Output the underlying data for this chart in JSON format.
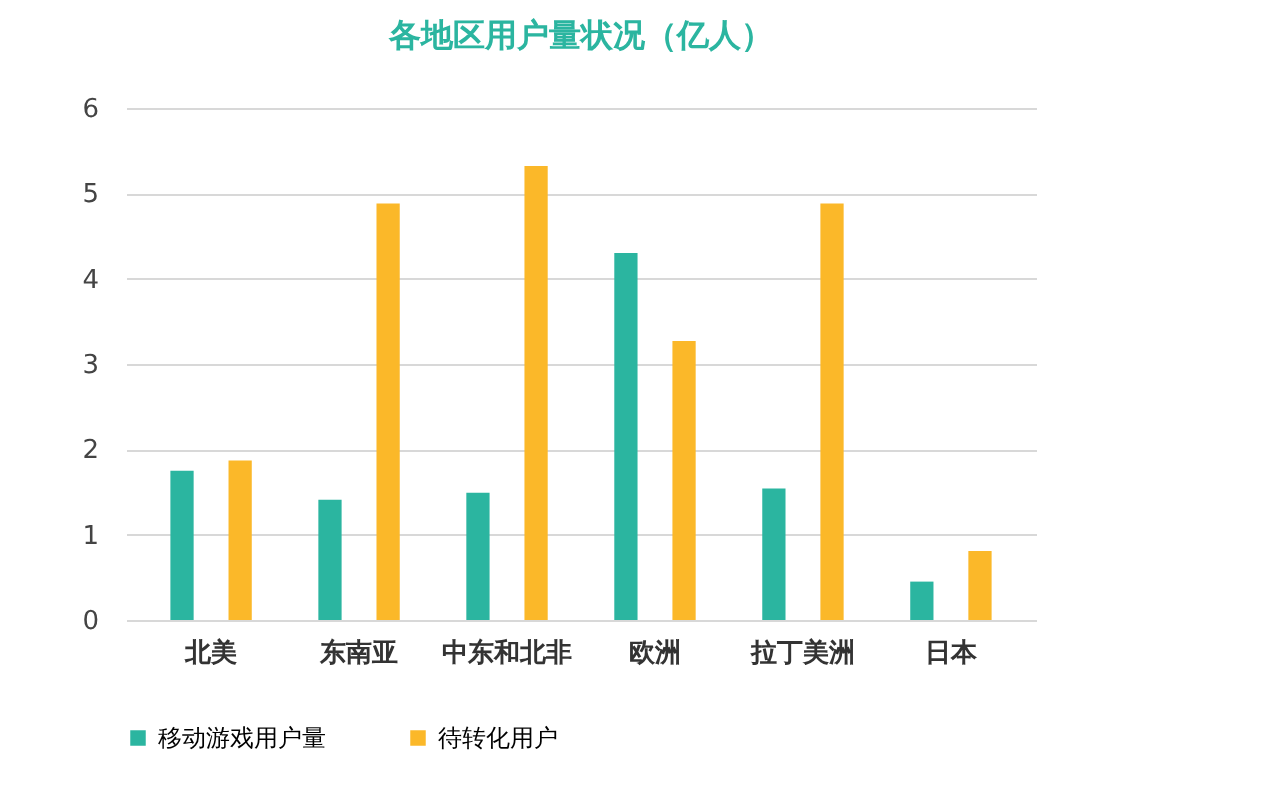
{
  "chart_data": {
    "type": "bar",
    "title": "各地区用户量状况（亿人）",
    "categories": [
      "北美",
      "东南亚",
      "中东和北非",
      "欧洲",
      "拉丁美洲",
      "日本"
    ],
    "series": [
      {
        "name": "移动游戏用户量",
        "color": "#2bb5a0",
        "values": [
          1.75,
          1.41,
          1.49,
          4.3,
          1.54,
          0.45
        ]
      },
      {
        "name": "待转化用户",
        "color": "#fbb829",
        "values": [
          1.87,
          4.88,
          5.32,
          3.27,
          4.88,
          0.81
        ]
      }
    ],
    "ylim": [
      0,
      6
    ],
    "yticks": [
      0,
      1,
      2,
      3,
      4,
      5,
      6
    ],
    "grid": "y",
    "legend": "bottom"
  }
}
